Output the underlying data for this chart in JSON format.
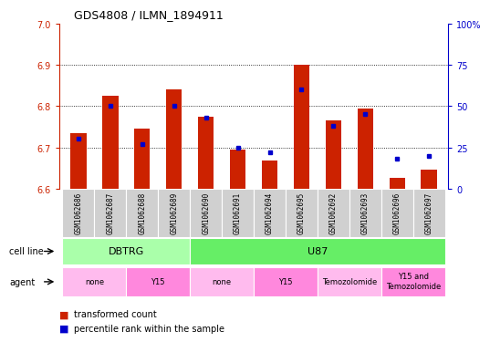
{
  "title": "GDS4808 / ILMN_1894911",
  "samples": [
    "GSM1062686",
    "GSM1062687",
    "GSM1062688",
    "GSM1062689",
    "GSM1062690",
    "GSM1062691",
    "GSM1062694",
    "GSM1062695",
    "GSM1062692",
    "GSM1062693",
    "GSM1062696",
    "GSM1062697"
  ],
  "transformed_count": [
    6.735,
    6.825,
    6.745,
    6.84,
    6.775,
    6.695,
    6.668,
    6.9,
    6.765,
    6.795,
    6.625,
    6.645
  ],
  "percentile_rank": [
    30,
    50,
    27,
    50,
    43,
    25,
    22,
    60,
    38,
    45,
    18,
    20
  ],
  "ylim_left": [
    6.6,
    7.0
  ],
  "ylim_right": [
    0,
    100
  ],
  "yticks_left": [
    6.6,
    6.7,
    6.8,
    6.9,
    7.0
  ],
  "yticks_right": [
    0,
    25,
    50,
    75,
    100
  ],
  "yticklabels_right": [
    "0",
    "25",
    "50",
    "75",
    "100%"
  ],
  "bar_color": "#cc2200",
  "dot_color": "#0000cc",
  "bar_bottom": 6.6,
  "cell_line_groups": [
    {
      "label": "DBTRG",
      "start": 0,
      "end": 3,
      "color": "#aaffaa"
    },
    {
      "label": "U87",
      "start": 4,
      "end": 11,
      "color": "#66ee66"
    }
  ],
  "agent_groups": [
    {
      "label": "none",
      "start": 0,
      "end": 1,
      "color": "#ffbbee"
    },
    {
      "label": "Y15",
      "start": 2,
      "end": 3,
      "color": "#ff88dd"
    },
    {
      "label": "none",
      "start": 4,
      "end": 5,
      "color": "#ffbbee"
    },
    {
      "label": "Y15",
      "start": 6,
      "end": 7,
      "color": "#ff88dd"
    },
    {
      "label": "Temozolomide",
      "start": 8,
      "end": 9,
      "color": "#ffbbee"
    },
    {
      "label": "Y15 and\nTemozolomide",
      "start": 10,
      "end": 11,
      "color": "#ff88dd"
    }
  ],
  "left_axis_color": "#cc2200",
  "right_axis_color": "#0000cc",
  "grid_color": "#000000",
  "bg_color": "#ffffff",
  "sample_bg": "#d0d0d0",
  "sample_border": "#ffffff"
}
